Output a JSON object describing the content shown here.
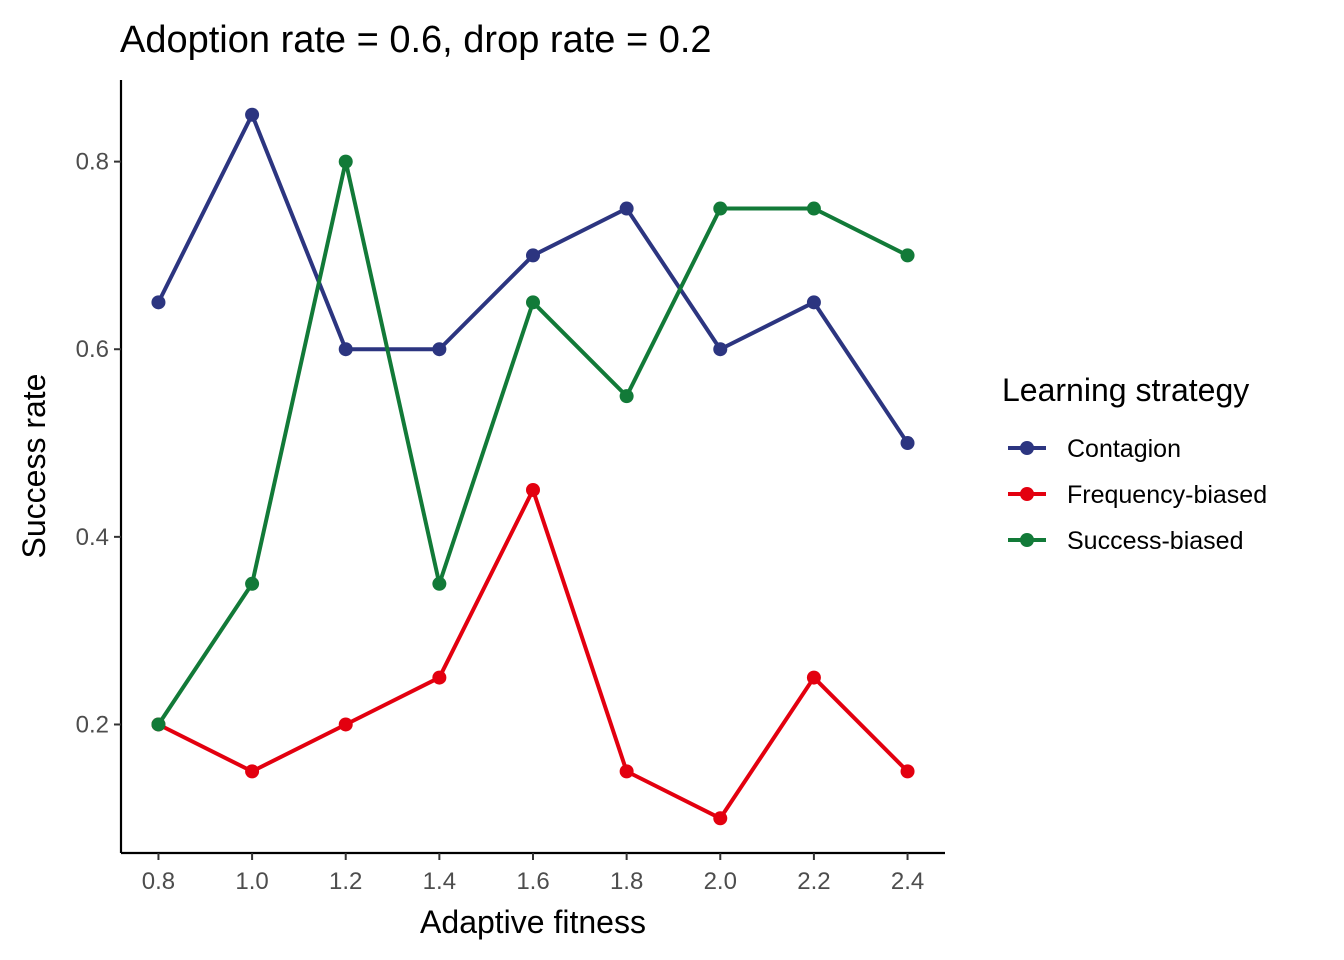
{
  "chart_data": {
    "type": "line",
    "title": "Adoption rate = 0.6, drop rate = 0.2",
    "xlabel": "Adaptive fitness",
    "ylabel": "Success rate",
    "x": [
      0.8,
      1.0,
      1.2,
      1.4,
      1.6,
      1.8,
      2.0,
      2.2,
      2.4
    ],
    "x_ticks": [
      "0.8",
      "1.0",
      "1.2",
      "1.4",
      "1.6",
      "1.8",
      "2.0",
      "2.2",
      "2.4"
    ],
    "y_ticks": [
      "0.2",
      "0.4",
      "0.6",
      "0.8"
    ],
    "xlim": [
      0.72,
      2.48
    ],
    "ylim": [
      0.063,
      0.887
    ],
    "grid": false,
    "legend": {
      "title": "Learning strategy",
      "placement": "right"
    },
    "series": [
      {
        "name": "Contagion",
        "color": "#2c3580",
        "values": [
          0.65,
          0.85,
          0.6,
          0.6,
          0.7,
          0.75,
          0.6,
          0.65,
          0.5
        ]
      },
      {
        "name": "Frequency-biased",
        "color": "#e3000f",
        "values": [
          0.2,
          0.15,
          0.2,
          0.25,
          0.45,
          0.15,
          0.1,
          0.25,
          0.15
        ]
      },
      {
        "name": "Success-biased",
        "color": "#127a38",
        "values": [
          0.2,
          0.35,
          0.8,
          0.35,
          0.65,
          0.55,
          0.75,
          0.75,
          0.7
        ]
      }
    ]
  }
}
